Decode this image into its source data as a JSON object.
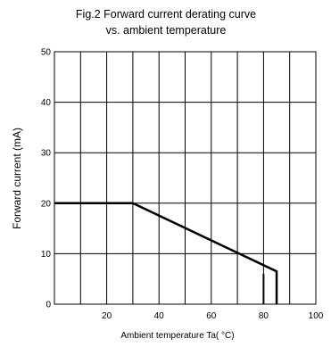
{
  "chart_data": {
    "type": "line",
    "title": [
      "Fig.2 Forward current derating curve",
      "vs. ambient temperature"
    ],
    "xlabel": "Ambient temperature Ta( °C)",
    "ylabel": "Forward current (mA)",
    "xlim": [
      0,
      100
    ],
    "ylim": [
      0,
      50
    ],
    "x_major_ticks": [
      20,
      40,
      60,
      80,
      100
    ],
    "x_grid": [
      10,
      20,
      30,
      40,
      50,
      60,
      70,
      80,
      90,
      100
    ],
    "y_ticks": [
      0,
      10,
      20,
      30,
      40,
      50
    ],
    "grid": true,
    "series": [
      {
        "x": [
          0,
          30,
          85,
          85
        ],
        "y": [
          20,
          20,
          6.5,
          0
        ]
      }
    ],
    "markers": [
      {
        "x": 80,
        "y_from": 0,
        "y_to": 6
      }
    ]
  }
}
